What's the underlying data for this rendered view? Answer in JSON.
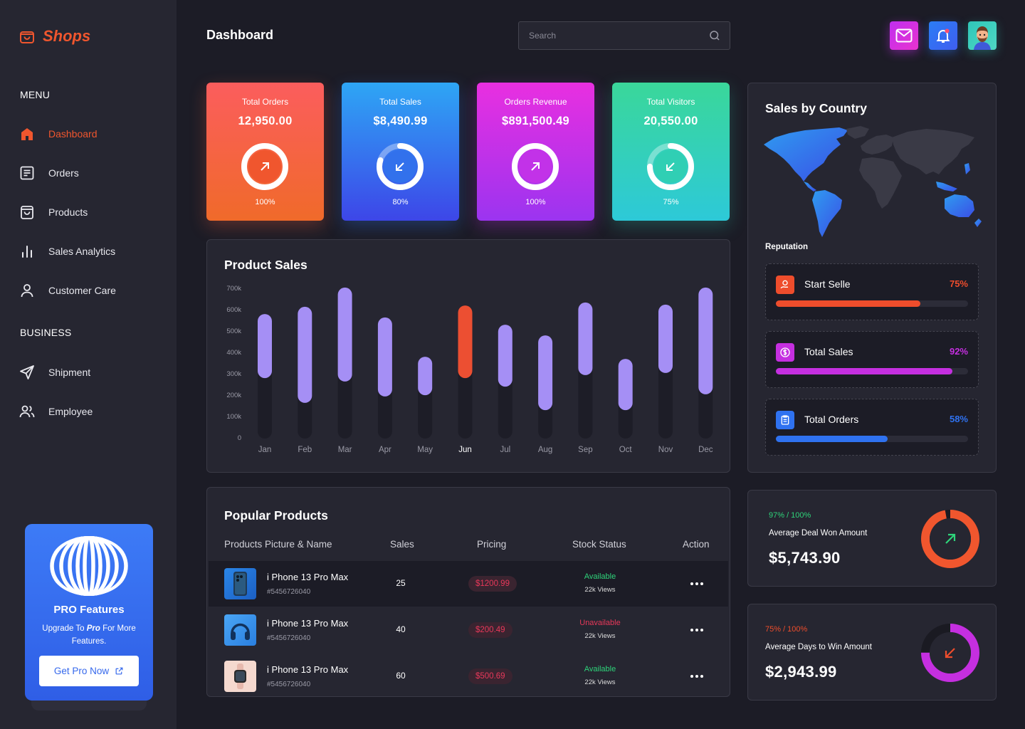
{
  "app": {
    "name": "Shops"
  },
  "sidebar": {
    "menu_heading": "MENU",
    "business_heading": "BUSINESS",
    "items": [
      {
        "label": "Dashboard",
        "icon": "home-icon",
        "active": true
      },
      {
        "label": "Orders",
        "icon": "orders-icon"
      },
      {
        "label": "Products",
        "icon": "bag-icon"
      },
      {
        "label": "Sales Analytics",
        "icon": "bar-chart-icon"
      },
      {
        "label": "Customer Care",
        "icon": "user-icon"
      }
    ],
    "business_items": [
      {
        "label": "Shipment",
        "icon": "send-icon"
      },
      {
        "label": "Employee",
        "icon": "users-icon"
      }
    ],
    "pro": {
      "title": "PRO Features",
      "subtitle_pre": "Upgrade To ",
      "subtitle_em": "Pro",
      "subtitle_post": " For More Features.",
      "button": "Get Pro Now"
    }
  },
  "header": {
    "title": "Dashboard",
    "search_placeholder": "Search"
  },
  "stats": [
    {
      "label": "Total Orders",
      "value": "12,950.00",
      "percent_label": "100%",
      "percent": 100,
      "direction": "up",
      "gradient": [
        "#fb5d5d",
        "#f06a2a"
      ]
    },
    {
      "label": "Total Sales",
      "value": "$8,490.99",
      "percent_label": "80%",
      "percent": 80,
      "direction": "down",
      "gradient": [
        "#2ea6f5",
        "#3d46e8"
      ]
    },
    {
      "label": "Orders Revenue",
      "value": "$891,500.49",
      "percent_label": "100%",
      "percent": 100,
      "direction": "up",
      "gradient": [
        "#e92fe0",
        "#9b34f0"
      ]
    },
    {
      "label": "Total Visitors",
      "value": "20,550.00",
      "percent_label": "75%",
      "percent": 75,
      "direction": "down",
      "gradient": [
        "#3ad79a",
        "#2dc9d8"
      ]
    }
  ],
  "product_sales": {
    "title": "Product Sales",
    "chart_data": {
      "type": "bar",
      "title": "Product Sales",
      "categories": [
        "Jan",
        "Feb",
        "Mar",
        "Apr",
        "May",
        "Jun",
        "Jul",
        "Aug",
        "Sep",
        "Oct",
        "Nov",
        "Dec"
      ],
      "ranges": [
        [
          283,
          583
        ],
        [
          167,
          617
        ],
        [
          267,
          707
        ],
        [
          197,
          567
        ],
        [
          203,
          383
        ],
        [
          283,
          623
        ],
        [
          243,
          533
        ],
        [
          133,
          483
        ],
        [
          297,
          637
        ],
        [
          133,
          373
        ],
        [
          307,
          627
        ],
        [
          207,
          707
        ]
      ],
      "highlight": "Jun",
      "yticks": [
        "700k",
        "600k",
        "500k",
        "400k",
        "300k",
        "200k",
        "100k",
        "0"
      ],
      "ylim": [
        0,
        700
      ],
      "unit": "k",
      "colors": {
        "bar": "#a58ff5",
        "highlight": "#ec4f32",
        "track": "#1d1d27"
      }
    }
  },
  "popular": {
    "title": "Popular Products",
    "columns": [
      "Products Picture & Name",
      "Sales",
      "Pricing",
      "Stock Status",
      "Action"
    ],
    "rows": [
      {
        "name": "i Phone 13 Pro Max",
        "id": "#5456726040",
        "sales": "25",
        "price": "$1200.99",
        "status": "Available",
        "views": "22k Views",
        "status_color": "#2ed47a",
        "thumb": "phone"
      },
      {
        "name": "i Phone 13 Pro Max",
        "id": "#5456726040",
        "sales": "40",
        "price": "$200.49",
        "status": "Unavailable",
        "views": "22k Views",
        "status_color": "#e8385a",
        "thumb": "headphones"
      },
      {
        "name": "i Phone 13 Pro Max",
        "id": "#5456726040",
        "sales": "60",
        "price": "$500.69",
        "status": "Available",
        "views": "22k Views",
        "status_color": "#2ed47a",
        "thumb": "watch"
      }
    ]
  },
  "country": {
    "title": "Sales by Country",
    "reputation_label": "Reputation",
    "items": [
      {
        "label": "Start Selle",
        "percent_label": "75%",
        "percent": 75,
        "color": "#ee4d2c",
        "icon": "hand-coin-icon"
      },
      {
        "label": "Total Sales",
        "percent_label": "92%",
        "percent": 92,
        "color": "#c52fe0",
        "icon": "dollar-icon"
      },
      {
        "label": "Total Orders",
        "percent_label": "58%",
        "percent": 58,
        "color": "#2f72f0",
        "icon": "clipboard-icon"
      }
    ]
  },
  "kpis": [
    {
      "small": "97% / 100%",
      "label": "Average Deal Won Amount",
      "value": "$5,743.90",
      "percent": 97,
      "small_color": "#2ed47a",
      "ring_color": "#f0562e"
    },
    {
      "small": "75% / 100%",
      "label": "Average Days to Win Amount",
      "value": "$2,943.99",
      "percent": 75,
      "small_color": "#ee4d2c",
      "ring_color": "#c52fe0"
    }
  ]
}
